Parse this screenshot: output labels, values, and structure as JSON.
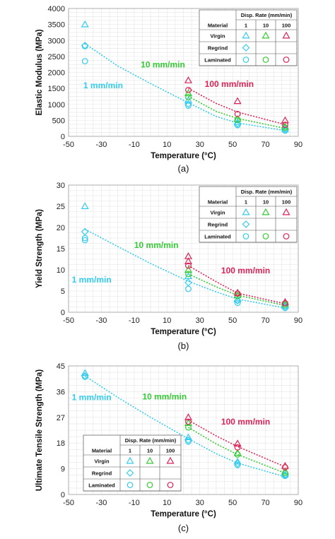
{
  "chart_data": [
    {
      "type": "scatter",
      "panel_label": "(a)",
      "xlabel": "Temperature (°C)",
      "ylabel": "Elastic Modulus (MPa)",
      "xlim": [
        -50,
        90
      ],
      "ylim": [
        0,
        4000
      ],
      "xticks": [
        -50,
        -30,
        -10,
        10,
        30,
        50,
        70,
        90
      ],
      "yticks": [
        0,
        500,
        1000,
        1500,
        2000,
        2500,
        3000,
        3500,
        4000
      ],
      "grid": true,
      "legend_position": "top-right",
      "annotations": [
        {
          "text": "1 mm/min",
          "color": "#33ccee",
          "x": -41,
          "y": 1500
        },
        {
          "text": "10 mm/min",
          "color": "#33cc33",
          "x": -6,
          "y": 2150
        },
        {
          "text": "100 mm/min",
          "color": "#dd2255",
          "x": 33,
          "y": 1550
        }
      ],
      "series": [
        {
          "material": "Virgin",
          "rate": "1",
          "marker": "triangle",
          "color": "#33ccee",
          "points": [
            [
              -40,
              3500
            ],
            [
              23,
              1130
            ],
            [
              53,
              440
            ],
            [
              82,
              230
            ]
          ]
        },
        {
          "material": "Virgin",
          "rate": "10",
          "marker": "triangle",
          "color": "#33cc33",
          "points": [
            [
              23,
              1350
            ],
            [
              53,
              540
            ],
            [
              82,
              300
            ]
          ]
        },
        {
          "material": "Virgin",
          "rate": "100",
          "marker": "triangle",
          "color": "#dd2255",
          "points": [
            [
              23,
              1750
            ],
            [
              53,
              1100
            ],
            [
              82,
              500
            ]
          ]
        },
        {
          "material": "Regrind",
          "rate": "1",
          "marker": "diamond",
          "color": "#33ccee",
          "points": [
            [
              -40,
              2840
            ],
            [
              23,
              1010
            ],
            [
              53,
              390
            ],
            [
              82,
              205
            ]
          ]
        },
        {
          "material": "Laminated",
          "rate": "1",
          "marker": "circle",
          "color": "#33ccee",
          "points": [
            [
              -40,
              2820
            ],
            [
              -40,
              2350
            ],
            [
              23,
              960
            ],
            [
              53,
              350
            ],
            [
              82,
              180
            ]
          ]
        },
        {
          "material": "Laminated",
          "rate": "10",
          "marker": "circle",
          "color": "#33cc33",
          "points": [
            [
              23,
              1230
            ],
            [
              53,
              520
            ],
            [
              82,
              270
            ]
          ]
        },
        {
          "material": "Laminated",
          "rate": "100",
          "marker": "circle",
          "color": "#dd2255",
          "points": [
            [
              23,
              1450
            ],
            [
              53,
              700
            ],
            [
              82,
              360
            ]
          ]
        }
      ],
      "trend_lines": [
        {
          "rate": "1",
          "color": "#33ccee",
          "points": [
            [
              -40,
              2900
            ],
            [
              -20,
              2200
            ],
            [
              0,
              1650
            ],
            [
              23,
              1050
            ],
            [
              40,
              620
            ],
            [
              53,
              420
            ],
            [
              82,
              180
            ]
          ]
        },
        {
          "rate": "10",
          "color": "#33cc33",
          "points": [
            [
              23,
              1250
            ],
            [
              40,
              780
            ],
            [
              53,
              560
            ],
            [
              82,
              250
            ]
          ]
        },
        {
          "rate": "100",
          "color": "#dd2255",
          "points": [
            [
              23,
              1500
            ],
            [
              40,
              1030
            ],
            [
              53,
              760
            ],
            [
              82,
              370
            ]
          ]
        }
      ]
    },
    {
      "type": "scatter",
      "panel_label": "(b)",
      "xlabel": "Temperature (°C)",
      "ylabel": "Yield Strength (MPa)",
      "xlim": [
        -50,
        90
      ],
      "ylim": [
        0,
        30
      ],
      "xticks": [
        -50,
        -30,
        -10,
        10,
        30,
        50,
        70,
        90
      ],
      "yticks": [
        0,
        5,
        10,
        15,
        20,
        25,
        30
      ],
      "grid": true,
      "legend_position": "top-right",
      "annotations": [
        {
          "text": "1 mm/min",
          "color": "#33ccee",
          "x": -48,
          "y": 7
        },
        {
          "text": "10 mm/min",
          "color": "#33cc33",
          "x": -10,
          "y": 15.2
        },
        {
          "text": "100 mm/min",
          "color": "#dd2255",
          "x": 43,
          "y": 9.2
        }
      ],
      "series": [
        {
          "material": "Virgin",
          "rate": "1",
          "marker": "triangle",
          "color": "#33ccee",
          "points": [
            [
              -40,
              25
            ],
            [
              23,
              8.5
            ],
            [
              53,
              3
            ],
            [
              82,
              1.5
            ]
          ]
        },
        {
          "material": "Virgin",
          "rate": "10",
          "marker": "triangle",
          "color": "#33cc33",
          "points": [
            [
              23,
              10
            ],
            [
              53,
              4
            ],
            [
              82,
              2
            ]
          ]
        },
        {
          "material": "Virgin",
          "rate": "100",
          "marker": "triangle",
          "color": "#dd2255",
          "points": [
            [
              23,
              13.2
            ],
            [
              23,
              12
            ],
            [
              53,
              4.6
            ],
            [
              82,
              2.4
            ]
          ]
        },
        {
          "material": "Regrind",
          "rate": "1",
          "marker": "diamond",
          "color": "#33ccee",
          "points": [
            [
              -40,
              19
            ],
            [
              23,
              7
            ],
            [
              53,
              2.7
            ],
            [
              82,
              1.2
            ]
          ]
        },
        {
          "material": "Laminated",
          "rate": "1",
          "marker": "circle",
          "color": "#33ccee",
          "points": [
            [
              -40,
              17.5
            ],
            [
              -40,
              17
            ],
            [
              23,
              5.5
            ],
            [
              53,
              2.2
            ],
            [
              82,
              1
            ]
          ]
        },
        {
          "material": "Laminated",
          "rate": "10",
          "marker": "circle",
          "color": "#33cc33",
          "points": [
            [
              23,
              9
            ],
            [
              53,
              3.8
            ],
            [
              82,
              1.7
            ]
          ]
        },
        {
          "material": "Laminated",
          "rate": "100",
          "marker": "circle",
          "color": "#dd2255",
          "points": [
            [
              23,
              11
            ],
            [
              53,
              4.4
            ],
            [
              82,
              2.1
            ]
          ]
        }
      ],
      "trend_lines": [
        {
          "rate": "1",
          "color": "#33ccee",
          "points": [
            [
              -40,
              19.6
            ],
            [
              -20,
              15.5
            ],
            [
              0,
              11.5
            ],
            [
              23,
              7.3
            ],
            [
              40,
              4.8
            ],
            [
              53,
              3.1
            ],
            [
              82,
              1
            ]
          ]
        },
        {
          "rate": "10",
          "color": "#33cc33",
          "points": [
            [
              23,
              9
            ],
            [
              40,
              6
            ],
            [
              53,
              4
            ],
            [
              82,
              1.6
            ]
          ]
        },
        {
          "rate": "100",
          "color": "#dd2255",
          "points": [
            [
              23,
              11
            ],
            [
              40,
              7.2
            ],
            [
              53,
              4.5
            ],
            [
              82,
              2
            ]
          ]
        }
      ]
    },
    {
      "type": "scatter",
      "panel_label": "(c)",
      "xlabel": "Temperature (°C)",
      "ylabel": "Ultimate Tensile Strength (MPa)",
      "xlim": [
        -50,
        90
      ],
      "ylim": [
        0,
        45
      ],
      "xticks": [
        -50,
        -30,
        -10,
        10,
        30,
        50,
        70,
        90
      ],
      "yticks": [
        0,
        9,
        18,
        27,
        36,
        45
      ],
      "grid": true,
      "legend_position": "bottom-left",
      "annotations": [
        {
          "text": "1 mm/min",
          "color": "#33ccee",
          "x": -48,
          "y": 33
        },
        {
          "text": "10 mm/min",
          "color": "#33cc33",
          "x": -5,
          "y": 33.2
        },
        {
          "text": "100 mm/min",
          "color": "#dd2255",
          "x": 43,
          "y": 24.5
        }
      ],
      "series": [
        {
          "material": "Virgin",
          "rate": "1",
          "marker": "triangle",
          "color": "#33ccee",
          "points": [
            [
              -40,
              42.5
            ],
            [
              23,
              20
            ],
            [
              53,
              11.5
            ],
            [
              82,
              7
            ]
          ]
        },
        {
          "material": "Virgin",
          "rate": "10",
          "marker": "triangle",
          "color": "#33cc33",
          "points": [
            [
              23,
              25
            ],
            [
              53,
              14.5
            ],
            [
              82,
              8
            ]
          ]
        },
        {
          "material": "Virgin",
          "rate": "100",
          "marker": "triangle",
          "color": "#dd2255",
          "points": [
            [
              23,
              27
            ],
            [
              53,
              17.8
            ],
            [
              82,
              10
            ]
          ]
        },
        {
          "material": "Regrind",
          "rate": "1",
          "marker": "diamond",
          "color": "#33ccee",
          "points": [
            [
              -40,
              41.5
            ],
            [
              23,
              19
            ],
            [
              53,
              10.8
            ],
            [
              82,
              6.8
            ]
          ]
        },
        {
          "material": "Laminated",
          "rate": "1",
          "marker": "circle",
          "color": "#33ccee",
          "points": [
            [
              -40,
              41.2
            ],
            [
              23,
              18.5
            ],
            [
              53,
              10.3
            ],
            [
              82,
              6.5
            ]
          ]
        },
        {
          "material": "Laminated",
          "rate": "10",
          "marker": "circle",
          "color": "#33cc33",
          "points": [
            [
              23,
              23.5
            ],
            [
              53,
              14
            ],
            [
              82,
              7.5
            ]
          ]
        },
        {
          "material": "Laminated",
          "rate": "100",
          "marker": "circle",
          "color": "#dd2255",
          "points": [
            [
              23,
              25.5
            ],
            [
              53,
              16.5
            ],
            [
              82,
              9.5
            ]
          ]
        }
      ],
      "trend_lines": [
        {
          "rate": "1",
          "color": "#33ccee",
          "points": [
            [
              -40,
              41.5
            ],
            [
              -20,
              34
            ],
            [
              0,
              27
            ],
            [
              23,
              19.5
            ],
            [
              40,
              14.3
            ],
            [
              53,
              11
            ],
            [
              82,
              6.2
            ]
          ]
        },
        {
          "rate": "10",
          "color": "#33cc33",
          "points": [
            [
              23,
              23.5
            ],
            [
              40,
              17.7
            ],
            [
              53,
              14
            ],
            [
              82,
              7.5
            ]
          ]
        },
        {
          "rate": "100",
          "color": "#dd2255",
          "points": [
            [
              23,
              26
            ],
            [
              40,
              20.5
            ],
            [
              53,
              16.8
            ],
            [
              82,
              9.7
            ]
          ]
        }
      ]
    }
  ],
  "legend": {
    "header": "Disp. Rate (mm/min)",
    "col_material": "Material",
    "rates": [
      "1",
      "10",
      "100"
    ],
    "rows": [
      {
        "label": "Virgin",
        "cells": [
          "triangle",
          "triangle",
          "triangle"
        ]
      },
      {
        "label": "Regrind",
        "cells": [
          "diamond",
          "",
          ""
        ]
      },
      {
        "label": "Laminated",
        "cells": [
          "circle",
          "circle",
          "circle"
        ]
      }
    ],
    "rate_colors": [
      "#33ccee",
      "#33cc33",
      "#dd2255"
    ]
  }
}
